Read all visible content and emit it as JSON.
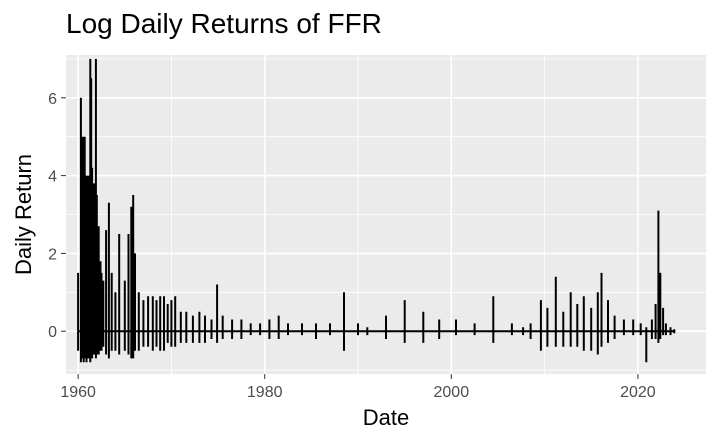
{
  "chart_data": {
    "type": "line",
    "title": "Log Daily Returns of FFR",
    "xlabel": "Date",
    "ylabel": "Daily Return",
    "xlim": [
      1958.7,
      2027.3
    ],
    "ylim": [
      -1.1,
      7.1
    ],
    "x_ticks": [
      1960,
      1980,
      2000,
      2020
    ],
    "x_tick_labels": [
      "1960",
      "1980",
      "2000",
      "2020"
    ],
    "y_ticks": [
      0,
      2,
      4,
      6
    ],
    "y_tick_labels": [
      "0",
      "2",
      "4",
      "6"
    ],
    "grid": true,
    "legend": "none",
    "colors": {
      "panel": "#ebebeb",
      "grid": "#ffffff",
      "line": "#000000",
      "text": "#4d4d4d"
    },
    "series": [
      {
        "x": [
          1960.0,
          1960.3,
          1960.5,
          1960.6,
          1960.7,
          1960.9,
          1961.0,
          1961.1,
          1961.3,
          1961.4,
          1961.5,
          1961.7,
          1961.9,
          1962.0,
          1962.2,
          1962.4,
          1962.5,
          1962.7,
          1963.0,
          1963.3,
          1963.6,
          1964.0,
          1964.4,
          1965.0,
          1965.4,
          1965.7,
          1965.9,
          1966.1,
          1966.5,
          1967.0,
          1967.5,
          1968.0,
          1968.4,
          1968.8,
          1969.2,
          1969.6,
          1970.0,
          1970.4,
          1971.0,
          1971.6,
          1972.3,
          1973.0,
          1973.6,
          1974.3,
          1974.9,
          1975.5,
          1976.5,
          1977.5,
          1978.5,
          1979.5,
          1980.5,
          1981.5,
          1982.5,
          1984.0,
          1985.5,
          1987.0,
          1988.5,
          1990.0,
          1991.0,
          1993.0,
          1995.0,
          1997.0,
          1998.7,
          2000.5,
          2002.5,
          2004.5,
          2006.5,
          2007.7,
          2008.5,
          2009.6,
          2010.3,
          2011.2,
          2012.0,
          2012.8,
          2013.5,
          2014.2,
          2015.0,
          2015.7,
          2016.1,
          2016.8,
          2017.5,
          2018.5,
          2019.5,
          2020.3,
          2020.9,
          2021.5,
          2021.9,
          2022.2,
          2022.4,
          2022.7,
          2023.0,
          2023.5,
          2023.9
        ],
        "y": [
          1.5,
          6.0,
          5.0,
          4.2,
          5.0,
          4.0,
          3.0,
          4.0,
          7.0,
          6.5,
          4.2,
          3.8,
          7.0,
          3.5,
          2.7,
          1.8,
          1.5,
          1.3,
          2.6,
          3.3,
          1.5,
          1.0,
          2.5,
          1.3,
          2.5,
          3.2,
          3.5,
          2.0,
          1.0,
          0.8,
          0.9,
          0.9,
          0.8,
          0.9,
          0.9,
          0.7,
          0.8,
          0.9,
          0.5,
          0.5,
          0.4,
          0.5,
          0.4,
          0.3,
          1.2,
          0.4,
          0.3,
          0.3,
          0.2,
          0.2,
          0.3,
          0.4,
          0.2,
          0.2,
          0.2,
          0.2,
          1.0,
          0.2,
          0.1,
          0.4,
          0.8,
          0.5,
          0.3,
          0.3,
          0.2,
          0.9,
          0.2,
          0.1,
          0.2,
          0.8,
          0.6,
          1.4,
          0.5,
          1.0,
          0.7,
          0.9,
          0.6,
          1.0,
          1.5,
          0.8,
          0.4,
          0.3,
          0.3,
          0.2,
          0.1,
          0.3,
          0.7,
          3.1,
          1.5,
          0.6,
          0.2,
          0.1,
          0.05
        ],
        "y_low": [
          -0.5,
          -0.8,
          -0.7,
          -0.8,
          -0.7,
          -0.8,
          -0.6,
          -0.7,
          -0.8,
          -0.7,
          -0.7,
          -0.6,
          -0.7,
          -0.6,
          -0.6,
          -0.5,
          -0.5,
          -0.4,
          -0.6,
          -0.7,
          -0.5,
          -0.5,
          -0.6,
          -0.5,
          -0.6,
          -0.7,
          -0.7,
          -0.5,
          -0.5,
          -0.4,
          -0.4,
          -0.5,
          -0.4,
          -0.5,
          -0.5,
          -0.3,
          -0.4,
          -0.4,
          -0.3,
          -0.3,
          -0.3,
          -0.3,
          -0.3,
          -0.2,
          -0.3,
          -0.2,
          -0.2,
          -0.2,
          -0.1,
          -0.1,
          -0.2,
          -0.2,
          -0.1,
          -0.1,
          -0.2,
          -0.1,
          -0.5,
          -0.1,
          -0.1,
          -0.2,
          -0.3,
          -0.3,
          -0.2,
          -0.1,
          -0.1,
          -0.3,
          -0.1,
          -0.1,
          -0.2,
          -0.5,
          -0.4,
          -0.4,
          -0.4,
          -0.4,
          -0.4,
          -0.5,
          -0.5,
          -0.6,
          -0.4,
          -0.3,
          -0.2,
          -0.1,
          -0.1,
          -0.1,
          -0.8,
          -0.2,
          -0.2,
          -0.3,
          -0.2,
          -0.1,
          -0.1,
          -0.1,
          -0.05
        ]
      }
    ]
  }
}
